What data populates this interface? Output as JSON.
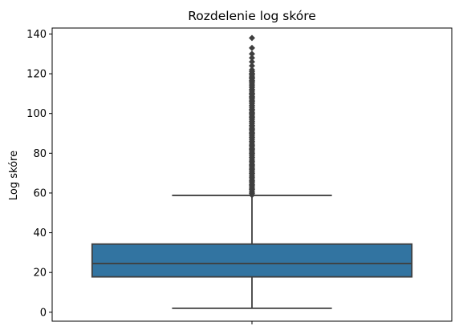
{
  "chart_data": {
    "type": "box",
    "title": "Rozdelenie log skóre",
    "xlabel": "",
    "ylabel": "Log skóre",
    "ylim": [
      -4.5,
      143
    ],
    "y_ticks": [
      0,
      20,
      40,
      60,
      80,
      100,
      120,
      140
    ],
    "grid": false,
    "box": {
      "lower_whisker": 2,
      "q1": 17.8,
      "median": 24.5,
      "q3": 34.3,
      "upper_whisker": 58.8,
      "outliers_range": [
        59,
        138
      ],
      "outliers": [
        59,
        60,
        62,
        64,
        66,
        68,
        70,
        72,
        74,
        76,
        78,
        80,
        82,
        84,
        86,
        88,
        90,
        92,
        94,
        96,
        98,
        100,
        102,
        104,
        106,
        108,
        110,
        112,
        114,
        116,
        118,
        120,
        122,
        124,
        126,
        128,
        130,
        133,
        138
      ]
    },
    "colors": {
      "box_fill": "#3274a1",
      "lines": "#3f3f3f"
    }
  }
}
